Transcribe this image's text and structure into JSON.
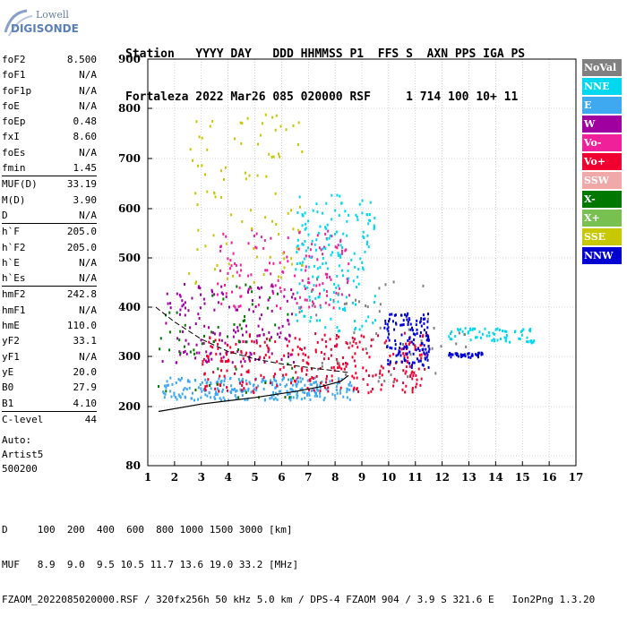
{
  "logo": {
    "line1": "Lowell",
    "line2": "DIGISONDE"
  },
  "header": {
    "line1": "Station   YYYY DAY   DDD HHMMSS P1  FFS S  AXN PPS IGA PS",
    "line2": "Fortaleza 2022 Mar26 085 020000 RSF     1 714 100 10+ 11"
  },
  "params": [
    {
      "label": "foF2",
      "value": "8.500"
    },
    {
      "label": "foF1",
      "value": "N/A"
    },
    {
      "label": "foF1p",
      "value": "N/A"
    },
    {
      "label": "foE",
      "value": "N/A"
    },
    {
      "label": "foEp",
      "value": "0.48"
    },
    {
      "label": "fxI",
      "value": "8.60"
    },
    {
      "label": "foEs",
      "value": "N/A"
    },
    {
      "label": "fmin",
      "value": "1.45"
    },
    {
      "sep": true
    },
    {
      "label": "MUF(D)",
      "value": "33.19"
    },
    {
      "label": "M(D)",
      "value": "3.90"
    },
    {
      "label": "D",
      "value": "N/A"
    },
    {
      "sep": true
    },
    {
      "label": "h`F",
      "value": "205.0"
    },
    {
      "label": "h`F2",
      "value": "205.0"
    },
    {
      "label": "h`E",
      "value": "N/A"
    },
    {
      "label": "h`Es",
      "value": "N/A"
    },
    {
      "sep": true
    },
    {
      "label": "hmF2",
      "value": "242.8"
    },
    {
      "label": "hmF1",
      "value": "N/A"
    },
    {
      "label": "hmE",
      "value": "110.0"
    },
    {
      "label": "yF2",
      "value": "33.1"
    },
    {
      "label": "yF1",
      "value": "N/A"
    },
    {
      "label": "yE",
      "value": "20.0"
    },
    {
      "label": "B0",
      "value": "27.9"
    },
    {
      "label": "B1",
      "value": "4.10"
    },
    {
      "sep": true
    },
    {
      "label": "C-level",
      "value": "44"
    }
  ],
  "auto": {
    "line1": "Auto:",
    "line2": "Artist5",
    "line3": "500200"
  },
  "footer": {
    "line1": "D     100  200  400  600  800 1000 1500 3000 [km]",
    "line2": "MUF   8.9  9.0  9.5 10.5 11.7 13.6 19.0 33.2 [MHz]",
    "line3": "FZAOM_2022085020000.RSF / 320fx256h 50 kHz 5.0 km / DPS-4 FZAOM 904 / 3.9 S 321.6 E   Ion2Png 1.3.20"
  },
  "legend": [
    {
      "label": "NoVal",
      "color": "#808080"
    },
    {
      "label": "NNE",
      "color": "#00d8f0"
    },
    {
      "label": "E",
      "color": "#3ea8f0"
    },
    {
      "label": "W",
      "color": "#a000a0"
    },
    {
      "label": "Vo-",
      "color": "#f0209a"
    },
    {
      "label": "Vo+",
      "color": "#f00030"
    },
    {
      "label": "SSW",
      "color": "#f0a8a8"
    },
    {
      "label": "X-",
      "color": "#007800"
    },
    {
      "label": "X+",
      "color": "#78c050"
    },
    {
      "label": "SSE",
      "color": "#c8c800"
    },
    {
      "label": "NNW",
      "color": "#0000d0"
    }
  ],
  "chart_data": {
    "type": "scatter",
    "xlim": [
      1,
      17
    ],
    "ylim": [
      80,
      900
    ],
    "x_ticks": [
      "1",
      "2",
      "3",
      "4",
      "5",
      "6",
      "7",
      "8",
      "9",
      "10",
      "11",
      "12",
      "13",
      "14",
      "15",
      "16",
      "17"
    ],
    "y_ticks": [
      "80",
      "200",
      "300",
      "400",
      "500",
      "600",
      "700",
      "800",
      "900"
    ],
    "grid": true,
    "legend_position": "right",
    "clusters": [
      {
        "name": "E",
        "color": "#3ea8f0",
        "x": [
          1.5,
          8.7
        ],
        "y": [
          215,
          260
        ],
        "density": 260
      },
      {
        "name": "Vo+",
        "color": "#f00030",
        "x": [
          3.0,
          11.5
        ],
        "y": [
          230,
          350
        ],
        "density": 320
      },
      {
        "name": "Vo-",
        "color": "#f0209a",
        "x": [
          3.5,
          8.5
        ],
        "y": [
          400,
          560
        ],
        "density": 140
      },
      {
        "name": "W",
        "color": "#a000a0",
        "x": [
          1.5,
          6.5
        ],
        "y": [
          290,
          450
        ],
        "density": 150
      },
      {
        "name": "NNE",
        "color": "#00d8f0",
        "x": [
          6.5,
          9.5
        ],
        "y": [
          350,
          630
        ],
        "density": 180
      },
      {
        "name": "SSE",
        "color": "#c8c800",
        "x": [
          2.5,
          6.8
        ],
        "y": [
          450,
          790
        ],
        "density": 90
      },
      {
        "name": "NNW",
        "color": "#0000d0",
        "x": [
          9.8,
          11.5
        ],
        "y": [
          280,
          390
        ],
        "density": 140
      },
      {
        "name": "NNW",
        "color": "#0000d0",
        "x": [
          12.2,
          13.5
        ],
        "y": [
          300,
          310
        ],
        "density": 40
      },
      {
        "name": "NNE",
        "color": "#00d8f0",
        "x": [
          12.2,
          15.4
        ],
        "y": [
          330,
          360
        ],
        "density": 70
      },
      {
        "name": "X-",
        "color": "#007800",
        "x": [
          1.3,
          6.5
        ],
        "y": [
          220,
          450
        ],
        "density": 60
      },
      {
        "name": "NoVal",
        "color": "#808080",
        "x": [
          6.0,
          13.0
        ],
        "y": [
          250,
          460
        ],
        "density": 50
      }
    ],
    "profile_curve": {
      "x": [
        1.4,
        3,
        5,
        6.5,
        7.5,
        8.2,
        8.5
      ],
      "y": [
        190,
        205,
        218,
        230,
        240,
        250,
        262
      ]
    },
    "dashed_curve": {
      "x": [
        1.3,
        2,
        3,
        4,
        5,
        6,
        7,
        8.5
      ],
      "y": [
        400,
        370,
        335,
        310,
        295,
        285,
        278,
        268
      ]
    }
  }
}
